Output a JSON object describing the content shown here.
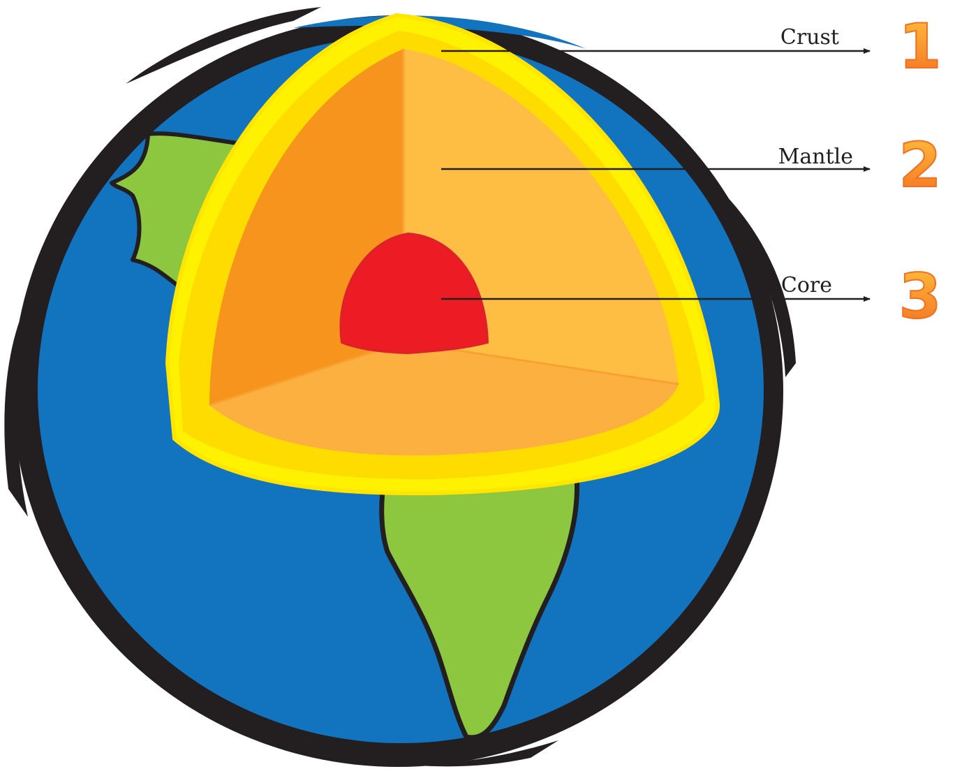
{
  "colors": {
    "ocean": "#1273be",
    "outline": "#231f20",
    "land": "#8dc63f",
    "crust": "#fff200",
    "crust_inner": "#ffd400",
    "mantle_left": "#f7941d",
    "mantle_right": "#fdbe43",
    "mantle_floor": "#fbb040",
    "core": "#ed1c24",
    "number_fill": "#f89d1f"
  },
  "layers": [
    {
      "name": "Crust",
      "number": "1"
    },
    {
      "name": "Mantle",
      "number": "2"
    },
    {
      "name": "Core",
      "number": "3"
    }
  ]
}
